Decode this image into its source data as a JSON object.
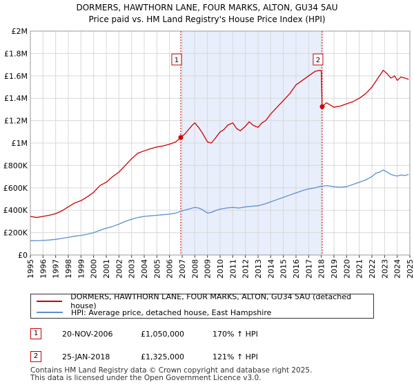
{
  "chart_data": {
    "type": "line",
    "title": "DORMERS, HAWTHORN LANE, FOUR MARKS, ALTON, GU34 5AU",
    "subtitle": "Price paid vs. HM Land Registry's House Price Index (HPI)",
    "xlim": [
      1995,
      2025
    ],
    "ylim": [
      0,
      2000000
    ],
    "x_ticks": [
      1995,
      1996,
      1997,
      1998,
      1999,
      2000,
      2001,
      2002,
      2003,
      2004,
      2005,
      2006,
      2007,
      2008,
      2009,
      2010,
      2011,
      2012,
      2013,
      2014,
      2015,
      2016,
      2017,
      2018,
      2019,
      2020,
      2021,
      2022,
      2023,
      2024,
      2025
    ],
    "y_ticks": [
      {
        "value": 0,
        "label": "£0"
      },
      {
        "value": 200000,
        "label": "£200K"
      },
      {
        "value": 400000,
        "label": "£400K"
      },
      {
        "value": 600000,
        "label": "£600K"
      },
      {
        "value": 800000,
        "label": "£800K"
      },
      {
        "value": 1000000,
        "label": "£1M"
      },
      {
        "value": 1200000,
        "label": "£1.2M"
      },
      {
        "value": 1400000,
        "label": "£1.4M"
      },
      {
        "value": 1600000,
        "label": "£1.6M"
      },
      {
        "value": 1800000,
        "label": "£1.8M"
      },
      {
        "value": 2000000,
        "label": "£2M"
      }
    ],
    "grid": true,
    "shaded_range": [
      2006.89,
      2018.07
    ],
    "series": [
      {
        "name": "DORMERS, HAWTHORN LANE, FOUR MARKS, ALTON, GU34 5AU (detached house)",
        "color": "#cc0000",
        "x": [
          1995.0,
          1995.5,
          1996.0,
          1996.5,
          1997.0,
          1997.5,
          1998.0,
          1998.5,
          1999.0,
          1999.5,
          2000.0,
          2000.5,
          2001.0,
          2001.5,
          2002.0,
          2002.5,
          2003.0,
          2003.5,
          2004.0,
          2004.5,
          2005.0,
          2005.5,
          2006.0,
          2006.5,
          2006.89,
          2007.2,
          2007.5,
          2007.8,
          2008.0,
          2008.3,
          2008.6,
          2009.0,
          2009.3,
          2009.6,
          2010.0,
          2010.3,
          2010.6,
          2011.0,
          2011.3,
          2011.6,
          2012.0,
          2012.3,
          2012.6,
          2013.0,
          2013.3,
          2013.6,
          2014.0,
          2014.5,
          2015.0,
          2015.5,
          2016.0,
          2016.5,
          2017.0,
          2017.5,
          2017.9,
          2018.0,
          2018.07,
          2018.4,
          2018.7,
          2019.0,
          2019.5,
          2020.0,
          2020.5,
          2021.0,
          2021.5,
          2022.0,
          2022.3,
          2022.6,
          2022.9,
          2023.2,
          2023.5,
          2023.8,
          2024.0,
          2024.3,
          2024.6,
          2024.9
        ],
        "values": [
          345000,
          335000,
          345000,
          355000,
          370000,
          395000,
          430000,
          465000,
          485000,
          520000,
          560000,
          620000,
          650000,
          700000,
          740000,
          800000,
          860000,
          910000,
          930000,
          950000,
          965000,
          975000,
          990000,
          1010000,
          1050000,
          1080000,
          1120000,
          1160000,
          1180000,
          1140000,
          1090000,
          1010000,
          1000000,
          1040000,
          1100000,
          1120000,
          1160000,
          1180000,
          1130000,
          1110000,
          1150000,
          1190000,
          1160000,
          1140000,
          1180000,
          1200000,
          1260000,
          1320000,
          1380000,
          1440000,
          1520000,
          1560000,
          1600000,
          1640000,
          1650000,
          1640000,
          1325000,
          1360000,
          1340000,
          1320000,
          1330000,
          1350000,
          1370000,
          1400000,
          1440000,
          1500000,
          1550000,
          1600000,
          1650000,
          1620000,
          1580000,
          1600000,
          1560000,
          1590000,
          1580000,
          1570000
        ]
      },
      {
        "name": "HPI: Average price, detached house, East Hampshire",
        "color": "#5b8fd0",
        "x": [
          1995.0,
          1995.5,
          1996.0,
          1996.5,
          1997.0,
          1997.5,
          1998.0,
          1998.5,
          1999.0,
          1999.5,
          2000.0,
          2000.5,
          2001.0,
          2001.5,
          2002.0,
          2002.5,
          2003.0,
          2003.5,
          2004.0,
          2004.5,
          2005.0,
          2005.5,
          2006.0,
          2006.5,
          2007.0,
          2007.5,
          2008.0,
          2008.3,
          2008.6,
          2009.0,
          2009.3,
          2009.6,
          2010.0,
          2010.5,
          2011.0,
          2011.5,
          2012.0,
          2012.5,
          2013.0,
          2013.5,
          2014.0,
          2014.5,
          2015.0,
          2015.5,
          2016.0,
          2016.5,
          2017.0,
          2017.5,
          2018.0,
          2018.5,
          2019.0,
          2019.5,
          2020.0,
          2020.5,
          2021.0,
          2021.5,
          2022.0,
          2022.3,
          2022.6,
          2022.9,
          2023.2,
          2023.5,
          2023.8,
          2024.0,
          2024.3,
          2024.6,
          2024.9
        ],
        "values": [
          128000,
          127000,
          130000,
          134000,
          140000,
          148000,
          158000,
          168000,
          175000,
          185000,
          200000,
          220000,
          240000,
          255000,
          275000,
          300000,
          320000,
          335000,
          345000,
          350000,
          355000,
          360000,
          365000,
          375000,
          395000,
          410000,
          425000,
          420000,
          405000,
          375000,
          380000,
          395000,
          410000,
          420000,
          425000,
          420000,
          430000,
          435000,
          440000,
          455000,
          475000,
          495000,
          515000,
          535000,
          555000,
          575000,
          590000,
          600000,
          615000,
          620000,
          610000,
          605000,
          610000,
          630000,
          650000,
          670000,
          700000,
          730000,
          740000,
          760000,
          740000,
          720000,
          710000,
          705000,
          715000,
          710000,
          720000
        ]
      }
    ],
    "sales": [
      {
        "n": "1",
        "x": 2006.89,
        "price": 1050000
      },
      {
        "n": "2",
        "x": 2018.07,
        "price": 1325000
      }
    ]
  },
  "legend": {
    "property": "DORMERS, HAWTHORN LANE, FOUR MARKS, ALTON, GU34 5AU (detached house)",
    "hpi": "HPI: Average price, detached house, East Hampshire"
  },
  "transactions": [
    {
      "n": "1",
      "date": "20-NOV-2006",
      "price": "£1,050,000",
      "hpi": "170% ↑ HPI"
    },
    {
      "n": "2",
      "date": "25-JAN-2018",
      "price": "£1,325,000",
      "hpi": "121% ↑ HPI"
    }
  ],
  "footer": {
    "line1": "Contains HM Land Registry data © Crown copyright and database right 2025.",
    "line2": "This data is licensed under the Open Government Licence v3.0."
  },
  "colors": {
    "property": "#cc0000",
    "hpi": "#5b8fd0",
    "shade": "#e8eefb",
    "grid": "#d8d8d8"
  }
}
